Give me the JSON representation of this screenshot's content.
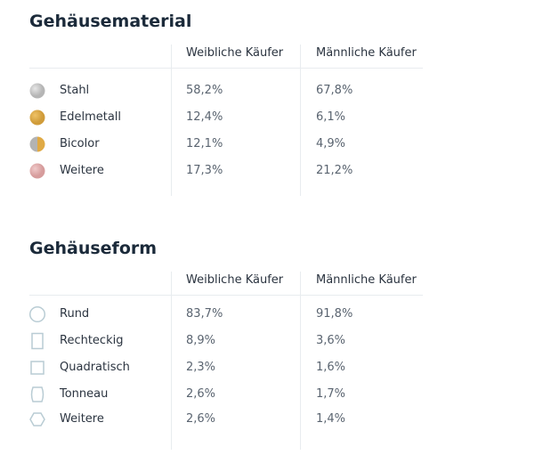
{
  "sections": [
    {
      "title": "Gehäusematerial",
      "headers": [
        "Weibliche Käufer",
        "Männliche Käufer"
      ],
      "rows": [
        [
          "Stahl",
          "58,2%",
          "67,8%"
        ],
        [
          "Edelmetall",
          "12,4%",
          "6,1%"
        ],
        [
          "Bicolor",
          "12,1%",
          "4,9%"
        ],
        [
          "Weitere",
          "17,3%",
          "21,2%"
        ]
      ]
    },
    {
      "title": "Gehäuseform",
      "headers": [
        "Weibliche Käufer",
        "Männliche Käufer"
      ],
      "rows": [
        [
          "Rund",
          "83,7%",
          "91,8%"
        ],
        [
          "Rechteckig",
          "8,9%",
          "3,6%"
        ],
        [
          "Quadratisch",
          "2,3%",
          "1,6%"
        ],
        [
          "Tonneau",
          "2,6%",
          "1,7%"
        ],
        [
          "Weitere",
          "2,6%",
          "1,4%"
        ]
      ]
    }
  ]
}
